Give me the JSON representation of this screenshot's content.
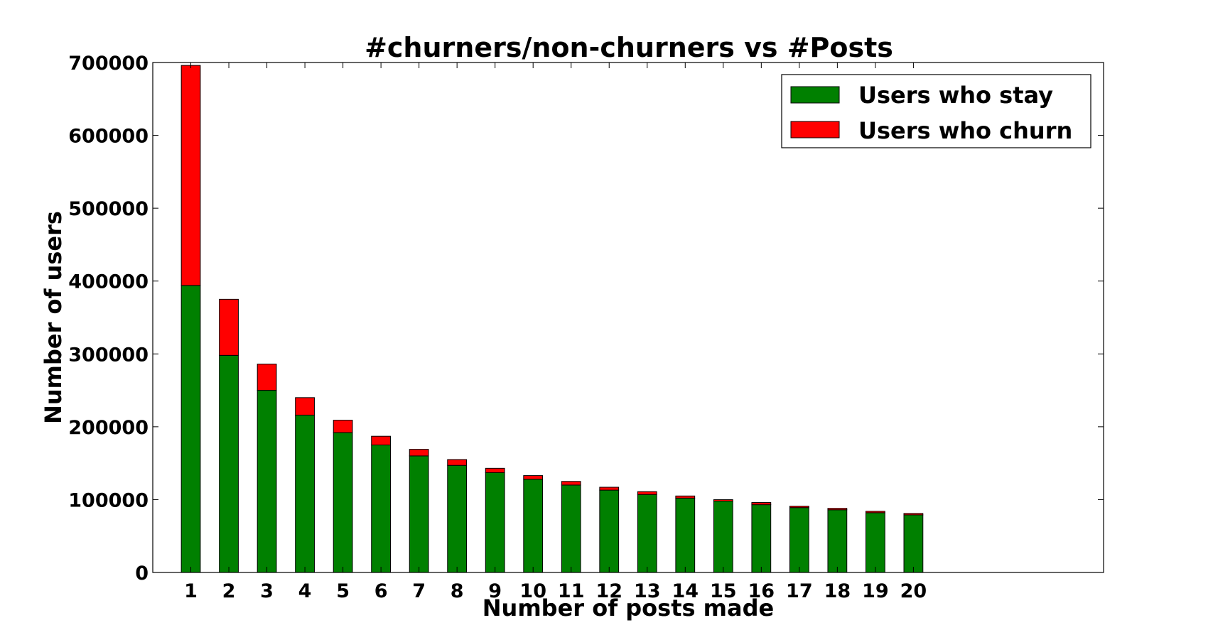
{
  "chart_data": {
    "type": "bar",
    "stacked": true,
    "title": "#churners/non-churners vs #Posts",
    "xlabel": "Number of posts made",
    "ylabel": "Number of users",
    "categories": [
      "1",
      "2",
      "3",
      "4",
      "5",
      "6",
      "7",
      "8",
      "9",
      "10",
      "11",
      "12",
      "13",
      "14",
      "15",
      "16",
      "17",
      "18",
      "19",
      "20"
    ],
    "xlim": [
      0,
      25
    ],
    "ylim": [
      0,
      700000
    ],
    "yticks": [
      0,
      100000,
      200000,
      300000,
      400000,
      500000,
      600000,
      700000
    ],
    "ytick_labels": [
      "0",
      "100000",
      "200000",
      "300000",
      "400000",
      "500000",
      "600000",
      "700000"
    ],
    "legend": "top-right",
    "grid": false,
    "series": [
      {
        "name": "Users who stay",
        "color": "#008000",
        "values": [
          394000,
          298000,
          250000,
          216000,
          192000,
          175000,
          160000,
          147000,
          137000,
          128000,
          120000,
          113000,
          107000,
          102000,
          98000,
          93000,
          89000,
          86000,
          82000,
          79000
        ]
      },
      {
        "name": "Users who churn",
        "color": "#ff0000",
        "values": [
          302000,
          77000,
          36000,
          24000,
          17000,
          12000,
          9000,
          8000,
          6000,
          5000,
          5000,
          4000,
          4000,
          3000,
          2000,
          3000,
          2000,
          2000,
          2000,
          2000
        ]
      }
    ]
  }
}
